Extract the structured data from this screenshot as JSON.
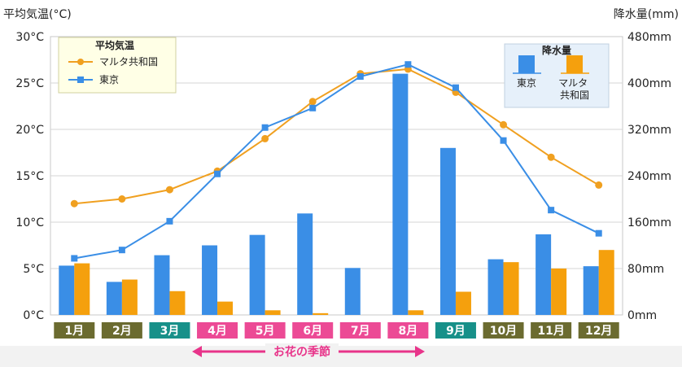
{
  "chart_data": {
    "type": "bar+line",
    "categories": [
      "1月",
      "2月",
      "3月",
      "4月",
      "5月",
      "6月",
      "7月",
      "8月",
      "9月",
      "10月",
      "11月",
      "12月"
    ],
    "left_axis": {
      "title": "平均気温(°C)",
      "ticks": [
        "0°C",
        "5°C",
        "10°C",
        "15°C",
        "20°C",
        "25°C",
        "30°C"
      ],
      "range": [
        0,
        30
      ]
    },
    "right_axis": {
      "title": "降水量(mm)",
      "ticks": [
        "0mm",
        "80mm",
        "160mm",
        "240mm",
        "320mm",
        "400mm",
        "480mm"
      ],
      "range": [
        0,
        480
      ]
    },
    "temperature": {
      "legend_title": "平均気温",
      "series": [
        {
          "name": "マルタ共和国",
          "color": "#f0a020",
          "marker": "circle",
          "values": [
            12.0,
            12.5,
            13.5,
            15.5,
            19.0,
            23.0,
            26.0,
            26.5,
            24.0,
            20.5,
            17.0,
            14.0
          ]
        },
        {
          "name": "東京",
          "color": "#3a8ee6",
          "marker": "square",
          "values": [
            6.1,
            7.0,
            10.1,
            15.2,
            20.2,
            22.3,
            25.7,
            27.0,
            24.5,
            18.8,
            11.3,
            8.8
          ]
        }
      ]
    },
    "precipitation": {
      "legend_title": "降水量",
      "series": [
        {
          "name": "東京",
          "color": "#3a8ee6",
          "values": [
            85,
            57,
            103,
            120,
            138,
            175,
            81,
            416,
            288,
            96,
            139,
            84
          ]
        },
        {
          "name": "マルタ\n共和国",
          "color": "#f5a00d",
          "values": [
            89,
            61,
            41,
            23,
            8,
            3,
            0,
            8,
            40,
            91,
            80,
            112
          ]
        }
      ]
    },
    "month_colors": [
      "#6b6b30",
      "#6b6b30",
      "#179089",
      "#ec4a95",
      "#ec4a95",
      "#ec4a95",
      "#ec4a95",
      "#ec4a95",
      "#179089",
      "#6b6b30",
      "#6b6b30",
      "#6b6b30"
    ],
    "annotation": "お花の季節",
    "annotation_color": "#e8348a",
    "grid": true
  }
}
